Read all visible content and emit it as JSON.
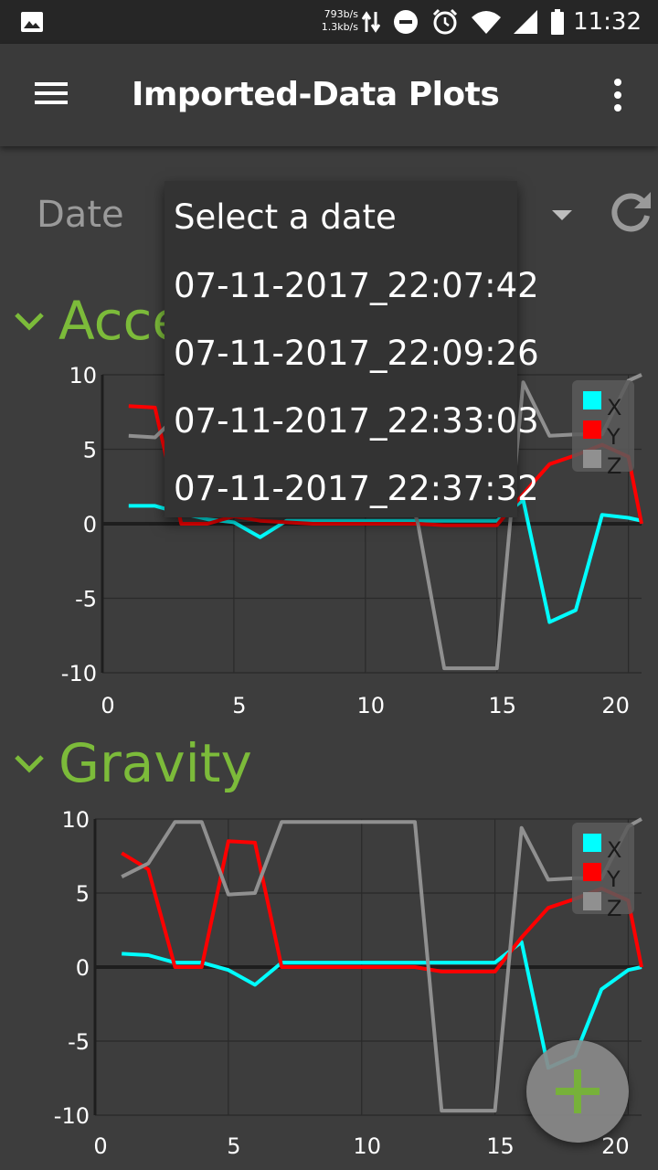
{
  "status_bar": {
    "net_up": "793b/s",
    "net_down": "1.3kb/s",
    "time": "11:32",
    "icons": [
      "image-icon",
      "data-arrows-icon",
      "dnd-icon",
      "alarm-icon",
      "wifi-icon",
      "signal-icon",
      "battery-icon"
    ]
  },
  "app_bar": {
    "title": "Imported-Data Plots",
    "menu_icon": "hamburger-icon",
    "overflow_icon": "more-vert-icon"
  },
  "controls": {
    "date_label": "Date",
    "refresh_icon": "refresh-icon"
  },
  "dropdown": {
    "items": [
      "Select a date",
      "07-11-2017_22:07:42",
      "07-11-2017_22:09:26",
      "07-11-2017_22:33:03",
      "07-11-2017_22:37:32"
    ]
  },
  "sections": [
    {
      "title": "Acce",
      "full_title_hidden_by_dropdown": true
    },
    {
      "title": "Gravity"
    }
  ],
  "colors": {
    "accent": "#7cbb3a",
    "x": "#00ffff",
    "y": "#ff0000",
    "z": "#909090"
  },
  "chart_data": [
    {
      "type": "line",
      "xlim": [
        0,
        20.5
      ],
      "ylim": [
        -10,
        10
      ],
      "xticks": [
        "0",
        "5",
        "10",
        "15",
        "20"
      ],
      "yticks": [
        "10",
        "5",
        "0",
        "-5",
        "-10"
      ],
      "legend": "top-right",
      "series": [
        {
          "name": "X",
          "color": "#00ffff",
          "x": [
            1,
            2,
            3,
            4,
            5,
            6,
            7,
            8,
            9,
            10,
            11,
            12,
            13,
            14,
            15,
            16,
            17,
            18,
            19,
            20,
            20.5
          ],
          "y": [
            1.2,
            1.2,
            0.7,
            0.3,
            0.1,
            -0.9,
            0.2,
            0.2,
            0.2,
            0.2,
            0.2,
            0.2,
            0.2,
            0.2,
            0.2,
            1.6,
            -6.6,
            -5.8,
            0.6,
            0.4,
            0.2
          ]
        },
        {
          "name": "Y",
          "color": "#ff0000",
          "x": [
            1,
            2,
            3,
            4,
            5,
            6,
            7,
            8,
            9,
            10,
            11,
            12,
            13,
            14,
            15,
            16,
            17,
            18,
            19,
            20,
            20.5
          ],
          "y": [
            7.9,
            7.8,
            0.0,
            0.0,
            0.5,
            0.2,
            0.1,
            0.0,
            0.0,
            0.0,
            0.0,
            0.0,
            -0.1,
            -0.1,
            -0.1,
            2.0,
            4.0,
            4.6,
            5.3,
            4.5,
            0.0
          ]
        },
        {
          "name": "Z",
          "color": "#909090",
          "x": [
            1,
            2,
            3,
            4,
            5,
            6,
            7,
            8,
            9,
            10,
            11,
            12,
            13,
            14,
            15,
            15.5,
            16,
            17,
            18,
            19,
            20,
            20.5
          ],
          "y": [
            5.9,
            5.8,
            7.5,
            6.0,
            6.0,
            6.0,
            6.0,
            6.0,
            6.0,
            6.0,
            6.0,
            0.0,
            -9.7,
            -9.7,
            -9.7,
            0.0,
            9.5,
            5.9,
            6.0,
            6.0,
            9.6,
            10.0
          ]
        }
      ]
    },
    {
      "type": "line",
      "xlim": [
        0,
        20.5
      ],
      "ylim": [
        -10,
        10
      ],
      "xticks": [
        "0",
        "5",
        "10",
        "15",
        "20"
      ],
      "yticks": [
        "10",
        "5",
        "0",
        "-5",
        "-10"
      ],
      "legend": "top-right",
      "series": [
        {
          "name": "X",
          "color": "#00ffff",
          "x": [
            1,
            2,
            3,
            4,
            5,
            6,
            7,
            8,
            9,
            10,
            11,
            12,
            13,
            14,
            15,
            16,
            17,
            18,
            19,
            20,
            20.5
          ],
          "y": [
            0.9,
            0.8,
            0.3,
            0.3,
            -0.2,
            -1.2,
            0.3,
            0.3,
            0.3,
            0.3,
            0.3,
            0.3,
            0.3,
            0.3,
            0.3,
            1.7,
            -6.8,
            -6.0,
            -1.5,
            -0.2,
            0.0
          ]
        },
        {
          "name": "Y",
          "color": "#ff0000",
          "x": [
            1,
            2,
            3,
            4,
            5,
            6,
            7,
            8,
            9,
            10,
            11,
            12,
            13,
            14,
            15,
            16,
            17,
            18,
            19,
            20,
            20.5
          ],
          "y": [
            7.7,
            6.6,
            0.0,
            0.0,
            8.5,
            8.4,
            0.0,
            0.0,
            0.0,
            0.0,
            0.0,
            0.0,
            -0.3,
            -0.3,
            -0.3,
            2.0,
            4.0,
            4.6,
            5.3,
            4.5,
            0.0
          ]
        },
        {
          "name": "Z",
          "color": "#909090",
          "x": [
            1,
            2,
            3,
            4,
            5,
            6,
            7,
            8,
            9,
            10,
            11,
            12,
            13,
            14,
            15,
            16,
            17,
            18,
            19,
            20,
            20.5
          ],
          "y": [
            6.1,
            7.0,
            9.8,
            9.8,
            4.9,
            5.0,
            9.8,
            9.8,
            9.8,
            9.8,
            9.8,
            9.8,
            -9.7,
            -9.7,
            -9.7,
            9.4,
            5.9,
            6.0,
            6.0,
            9.5,
            10.0
          ]
        }
      ]
    }
  ],
  "fab": {
    "icon": "plus-icon"
  }
}
